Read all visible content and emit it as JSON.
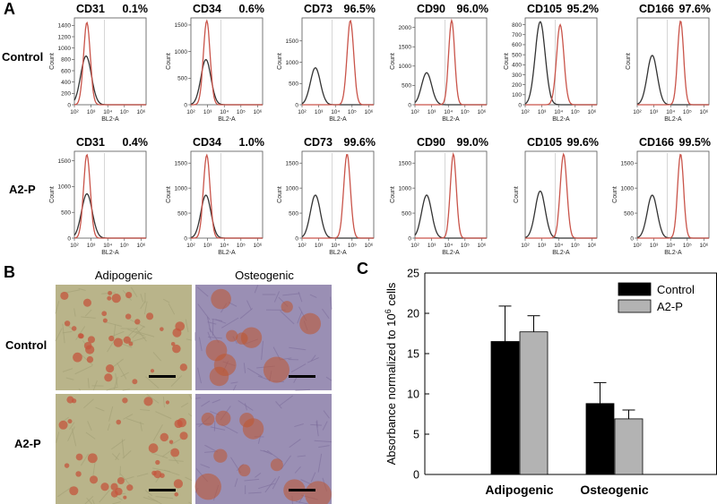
{
  "panels": {
    "a": {
      "letter": "A"
    },
    "b": {
      "letter": "B"
    },
    "c": {
      "letter": "C"
    }
  },
  "flow": {
    "row_labels": [
      "Control",
      "A2-P"
    ],
    "x_label": "BL2-A",
    "y_label": "Count",
    "x_ticks": [
      "10²",
      "10³",
      "10⁴",
      "10⁵",
      "10⁶"
    ],
    "x_tick_exponents": [
      2,
      3,
      4,
      5,
      6
    ],
    "isotype_color": "#333333",
    "stain_color": "#c9544a",
    "histograms": [
      {
        "marker": "CD31",
        "percent": "0.1%",
        "row": 0,
        "col": 0,
        "y_ticks": [
          0,
          200,
          400,
          600,
          800,
          1000,
          1200,
          1400
        ],
        "y_max": 1500,
        "iso": {
          "center": 2.7,
          "peak": 860,
          "sigma": 0.32
        },
        "stain": {
          "center": 2.75,
          "peak": 1450,
          "sigma": 0.2
        }
      },
      {
        "marker": "CD34",
        "percent": "0.6%",
        "row": 0,
        "col": 1,
        "y_ticks": [
          0,
          500,
          1000,
          1500
        ],
        "y_max": 1600,
        "iso": {
          "center": 2.9,
          "peak": 850,
          "sigma": 0.3
        },
        "stain": {
          "center": 2.95,
          "peak": 1580,
          "sigma": 0.2
        }
      },
      {
        "marker": "CD73",
        "percent": "96.5%",
        "row": 0,
        "col": 2,
        "y_ticks": [
          0,
          500,
          1000,
          1500
        ],
        "y_max": 2000,
        "iso": {
          "center": 2.8,
          "peak": 870,
          "sigma": 0.3
        },
        "stain": {
          "center": 4.9,
          "peak": 1980,
          "sigma": 0.2
        }
      },
      {
        "marker": "CD90",
        "percent": "96.0%",
        "row": 0,
        "col": 3,
        "y_ticks": [
          0,
          500,
          1000,
          1500,
          2000
        ],
        "y_max": 2200,
        "iso": {
          "center": 2.7,
          "peak": 830,
          "sigma": 0.3
        },
        "stain": {
          "center": 4.2,
          "peak": 2180,
          "sigma": 0.18
        }
      },
      {
        "marker": "CD105",
        "percent": "95.2%",
        "row": 0,
        "col": 4,
        "y_ticks": [
          0,
          100,
          200,
          300,
          400,
          500,
          600,
          700,
          800
        ],
        "y_max": 850,
        "iso": {
          "center": 2.9,
          "peak": 830,
          "sigma": 0.3
        },
        "stain": {
          "center": 4.1,
          "peak": 800,
          "sigma": 0.22
        }
      },
      {
        "marker": "CD166",
        "percent": "97.6%",
        "row": 0,
        "col": 5,
        "y_ticks": [],
        "y_max": 1500,
        "iso": {
          "center": 2.9,
          "peak": 870,
          "sigma": 0.3
        },
        "stain": {
          "center": 4.6,
          "peak": 1480,
          "sigma": 0.18
        }
      },
      {
        "marker": "CD31",
        "percent": "0.4%",
        "row": 1,
        "col": 0,
        "y_ticks": [
          0,
          500,
          1000,
          1500
        ],
        "y_max": 1650,
        "iso": {
          "center": 2.75,
          "peak": 860,
          "sigma": 0.32
        },
        "stain": {
          "center": 2.75,
          "peak": 1620,
          "sigma": 0.2
        }
      },
      {
        "marker": "CD34",
        "percent": "1.0%",
        "row": 1,
        "col": 1,
        "y_ticks": [
          0,
          500,
          1000,
          1500
        ],
        "y_max": 1700,
        "iso": {
          "center": 2.9,
          "peak": 860,
          "sigma": 0.3
        },
        "stain": {
          "center": 2.95,
          "peak": 1660,
          "sigma": 0.2
        }
      },
      {
        "marker": "CD73",
        "percent": "99.6%",
        "row": 1,
        "col": 2,
        "y_ticks": [
          0,
          500,
          1000,
          1500
        ],
        "y_max": 1700,
        "iso": {
          "center": 2.8,
          "peak": 860,
          "sigma": 0.3
        },
        "stain": {
          "center": 4.7,
          "peak": 1680,
          "sigma": 0.2
        }
      },
      {
        "marker": "CD90",
        "percent": "99.0%",
        "row": 1,
        "col": 3,
        "y_ticks": [
          0,
          500,
          1000,
          1500
        ],
        "y_max": 1700,
        "iso": {
          "center": 2.7,
          "peak": 860,
          "sigma": 0.3
        },
        "stain": {
          "center": 4.3,
          "peak": 1680,
          "sigma": 0.18
        }
      },
      {
        "marker": "CD105",
        "percent": "99.6%",
        "row": 1,
        "col": 4,
        "y_ticks": [],
        "y_max": 1500,
        "iso": {
          "center": 2.9,
          "peak": 830,
          "sigma": 0.3
        },
        "stain": {
          "center": 4.3,
          "peak": 1480,
          "sigma": 0.2
        }
      },
      {
        "marker": "CD166",
        "percent": "99.5%",
        "row": 1,
        "col": 5,
        "y_ticks": [
          0,
          500,
          1000,
          1500
        ],
        "y_max": 1700,
        "iso": {
          "center": 2.9,
          "peak": 860,
          "sigma": 0.3
        },
        "stain": {
          "center": 4.6,
          "peak": 1680,
          "sigma": 0.18
        }
      }
    ]
  },
  "micrographs": {
    "col_labels": [
      "Adipogenic",
      "Osteogenic"
    ],
    "row_labels": [
      "Control",
      "A2-P"
    ],
    "colors": {
      "adipo_bg": "#b9b48a",
      "osteo_bg": "#9a8fb4",
      "lipid": "#c4553c",
      "mineral": "#c0562e"
    }
  },
  "chart_data": {
    "type": "bar",
    "categories": [
      "Adipogenic",
      "Osteogenic"
    ],
    "series": [
      {
        "name": "Control",
        "color": "#000000",
        "values": [
          16.5,
          8.8
        ],
        "errors": [
          4.4,
          2.6
        ]
      },
      {
        "name": "A2-P",
        "color": "#b3b3b3",
        "values": [
          17.7,
          6.9
        ],
        "errors": [
          2.0,
          1.1
        ]
      }
    ],
    "ylabel": "Absorbance normalized to 10⁶ cells",
    "ylabel_main": "Absorbance normalized to 10",
    "ylabel_exp": "6",
    "ylabel_tail": " cells",
    "ylim": [
      0,
      25
    ],
    "yticks": [
      0,
      5,
      10,
      15,
      20,
      25
    ],
    "legend": "top-right"
  }
}
